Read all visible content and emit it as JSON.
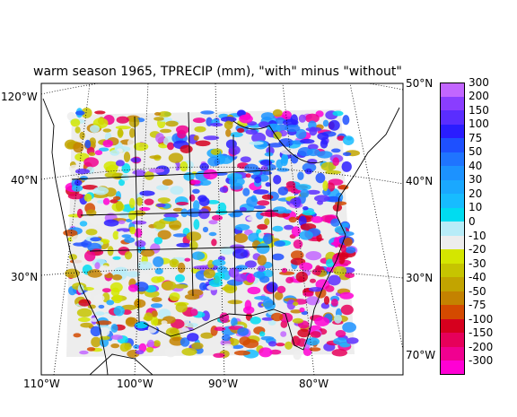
{
  "title": "warm season 1965, TPRECIP (mm), \"with\" minus \"without\"",
  "map": {
    "projection_labels": {
      "lon_bottom": [
        "110°W",
        "100°W",
        "90°W",
        "80°W"
      ],
      "lon_right_bottom": "70°W",
      "lon_left_top": "120°W",
      "lat_left": [
        "40°N",
        "30°N"
      ],
      "lat_right": [
        "50°N",
        "40°N",
        "30°N"
      ]
    },
    "field": "TPRECIP difference (mm)",
    "region": "Continental United States"
  },
  "colorbar": {
    "labels": [
      "300",
      "200",
      "150",
      "100",
      "75",
      "50",
      "40",
      "30",
      "20",
      "10",
      "0",
      "-10",
      "-20",
      "-30",
      "-40",
      "-50",
      "-75",
      "-100",
      "-150",
      "-200",
      "-300"
    ],
    "colors": [
      "#c266ff",
      "#8a3dff",
      "#5a2dff",
      "#2a1dff",
      "#1e50ff",
      "#1f74ff",
      "#1c92ff",
      "#1aa8ff",
      "#17bcff",
      "#00dcf0",
      "#b8ecf8",
      "#ededed",
      "#d4e600",
      "#c6c400",
      "#c2a400",
      "#c48200",
      "#d44a00",
      "#d6001e",
      "#e6005a",
      "#f00090",
      "#ff00d4"
    ]
  }
}
